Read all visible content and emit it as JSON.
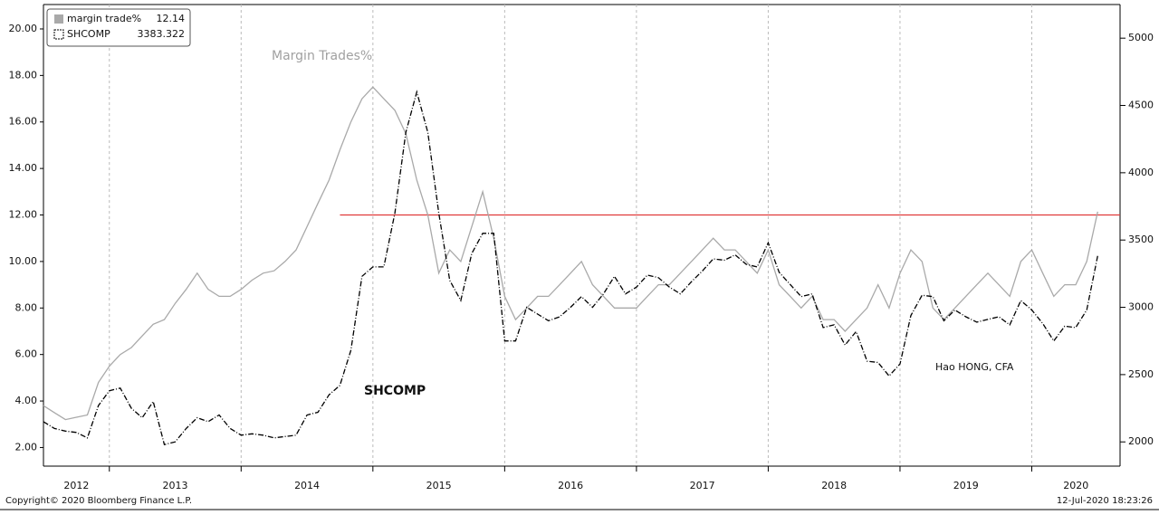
{
  "chart_data": {
    "type": "line",
    "annotations": [
      "Margin Trades%",
      "SHCOMP",
      "Hao HONG, CFA"
    ],
    "footer_left": "Copyright© 2020 Bloomberg Finance L.P.",
    "footer_right": "12-Jul-2020 18:23:26",
    "x": [
      2012.5,
      2012.583,
      2012.667,
      2012.75,
      2012.833,
      2012.917,
      2013,
      2013.083,
      2013.167,
      2013.25,
      2013.333,
      2013.417,
      2013.5,
      2013.583,
      2013.667,
      2013.75,
      2013.833,
      2013.917,
      2014,
      2014.083,
      2014.167,
      2014.25,
      2014.333,
      2014.417,
      2014.5,
      2014.583,
      2014.667,
      2014.75,
      2014.833,
      2014.917,
      2015,
      2015.083,
      2015.167,
      2015.25,
      2015.333,
      2015.417,
      2015.5,
      2015.583,
      2015.667,
      2015.75,
      2015.833,
      2015.917,
      2016,
      2016.083,
      2016.167,
      2016.25,
      2016.333,
      2016.417,
      2016.5,
      2016.583,
      2016.667,
      2016.75,
      2016.833,
      2016.917,
      2017,
      2017.083,
      2017.167,
      2017.25,
      2017.333,
      2017.417,
      2017.5,
      2017.583,
      2017.667,
      2017.75,
      2017.833,
      2017.917,
      2018,
      2018.083,
      2018.167,
      2018.25,
      2018.333,
      2018.417,
      2018.5,
      2018.583,
      2018.667,
      2018.75,
      2018.833,
      2018.917,
      2019,
      2019.083,
      2019.167,
      2019.25,
      2019.333,
      2019.417,
      2019.5,
      2019.583,
      2019.667,
      2019.75,
      2019.833,
      2019.917,
      2020,
      2020.083,
      2020.167,
      2020.25,
      2020.333,
      2020.417,
      2020.5
    ],
    "series": [
      {
        "name": "margin trade%",
        "color": "#a9a9a9",
        "axis": "y",
        "values": [
          3.8,
          3.5,
          3.2,
          3.3,
          3.4,
          4.8,
          5.5,
          6.0,
          6.3,
          6.8,
          7.3,
          7.5,
          8.2,
          8.8,
          9.5,
          8.8,
          8.5,
          8.5,
          8.8,
          9.2,
          9.5,
          9.6,
          10.0,
          10.5,
          11.5,
          12.5,
          13.5,
          14.8,
          16.0,
          17.0,
          17.5,
          17.0,
          16.5,
          15.5,
          13.5,
          12.0,
          9.5,
          10.5,
          10.0,
          11.5,
          13.0,
          11.0,
          8.5,
          7.5,
          8.0,
          8.5,
          8.5,
          9.0,
          9.5,
          10.0,
          9.0,
          8.5,
          8.0,
          8.0,
          8.0,
          8.5,
          9.0,
          9.0,
          9.5,
          10.0,
          10.5,
          11.0,
          10.5,
          10.5,
          10.0,
          9.5,
          10.5,
          9.0,
          8.5,
          8.0,
          8.5,
          7.5,
          7.5,
          7.0,
          7.5,
          8.0,
          9.0,
          8.0,
          9.5,
          10.5,
          10.0,
          8.0,
          7.5,
          8.0,
          8.5,
          9.0,
          9.5,
          9.0,
          8.5,
          10.0,
          10.5,
          9.5,
          8.5,
          9.0,
          9.0,
          10.0,
          12.14
        ]
      },
      {
        "name": "SHCOMP",
        "color": "#000000",
        "axis": "y2",
        "values": [
          2150,
          2100,
          2080,
          2070,
          2030,
          2270,
          2380,
          2400,
          2250,
          2180,
          2300,
          1980,
          2000,
          2100,
          2180,
          2150,
          2200,
          2100,
          2050,
          2060,
          2050,
          2030,
          2040,
          2050,
          2200,
          2220,
          2350,
          2420,
          2680,
          3230,
          3300,
          3300,
          3700,
          4300,
          4600,
          4300,
          3700,
          3200,
          3050,
          3400,
          3550,
          3550,
          2750,
          2750,
          3000,
          2950,
          2900,
          2930,
          3000,
          3080,
          3000,
          3100,
          3230,
          3100,
          3150,
          3240,
          3220,
          3150,
          3100,
          3190,
          3270,
          3360,
          3350,
          3390,
          3320,
          3300,
          3480,
          3260,
          3170,
          3080,
          3100,
          2850,
          2870,
          2720,
          2820,
          2600,
          2590,
          2490,
          2580,
          2940,
          3090,
          3080,
          2900,
          2980,
          2930,
          2890,
          2910,
          2930,
          2870,
          3050,
          2980,
          2880,
          2750,
          2860,
          2850,
          2980,
          3383.322
        ]
      }
    ],
    "reference_line": {
      "value": 12,
      "x_start": 2014.75,
      "color": "#e03a3a"
    },
    "xlim": [
      2012.5,
      2020.67
    ],
    "xticks": [
      2012,
      2013,
      2014,
      2015,
      2016,
      2017,
      2018,
      2019,
      2020
    ],
    "ylim": [
      1.2,
      21.05
    ],
    "yticks": [
      {
        "value": 2,
        "label": "2.00"
      },
      {
        "value": 4,
        "label": "4.00"
      },
      {
        "value": 6,
        "label": "6.00"
      },
      {
        "value": 8,
        "label": "8.00"
      },
      {
        "value": 10,
        "label": "10.00"
      },
      {
        "value": 12,
        "label": "12.00"
      },
      {
        "value": 14,
        "label": "14.00"
      },
      {
        "value": 16,
        "label": "16.00"
      },
      {
        "value": 18,
        "label": "18.00"
      },
      {
        "value": 20,
        "label": "20.00"
      }
    ],
    "y2lim": [
      1820,
      5250
    ],
    "y2ticks": [
      2000,
      2500,
      3000,
      3500,
      4000,
      4500,
      5000
    ],
    "grid": "x"
  }
}
